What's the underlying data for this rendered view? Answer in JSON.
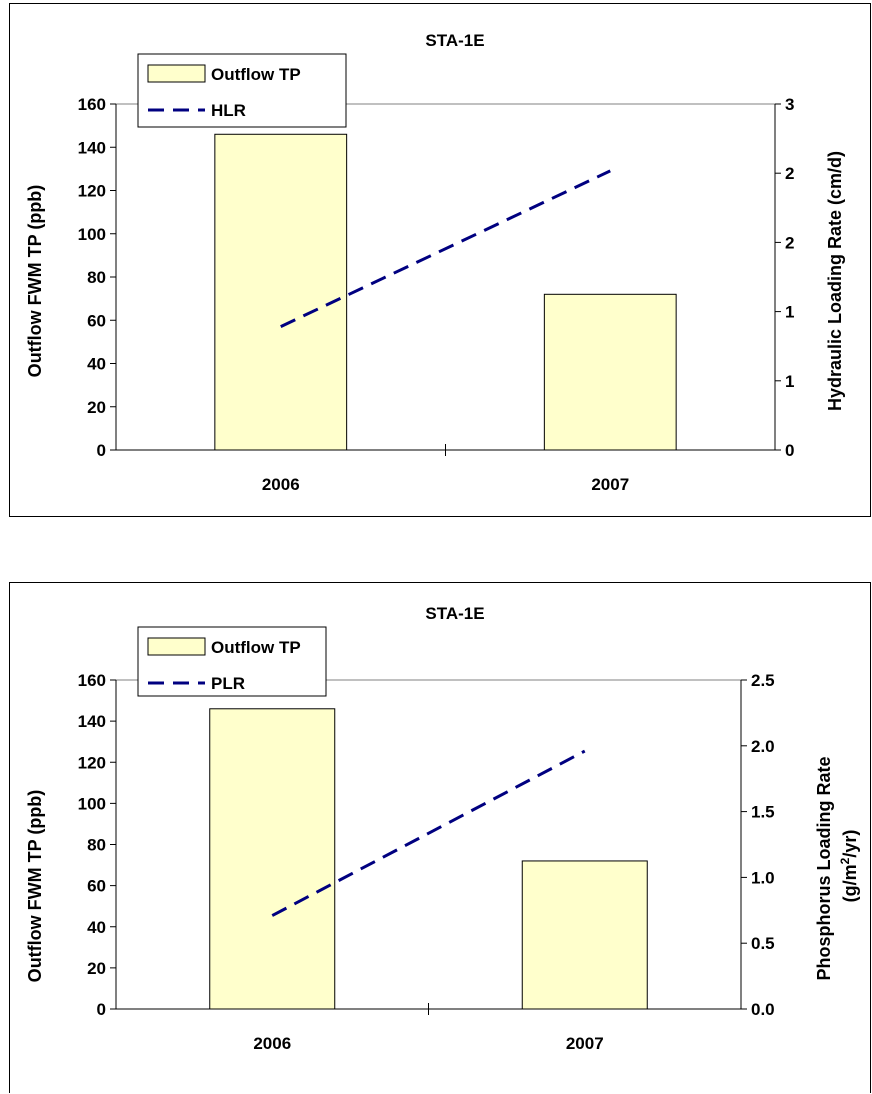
{
  "chart_data": [
    {
      "type": "bar",
      "title": "STA-1E",
      "categories": [
        "2006",
        "2007"
      ],
      "series": [
        {
          "name": "Outflow TP",
          "type": "bar",
          "axis": "left",
          "values": [
            146,
            72
          ],
          "color": "#FFFFCC"
        },
        {
          "name": "HLR",
          "type": "line",
          "axis": "right",
          "values": [
            1.07,
            2.42
          ],
          "color": "#000080",
          "style": "dashed"
        }
      ],
      "ylabel": "Outflow FWM TP (ppb)",
      "y2label": "Hydraulic Loading Rate (cm/d)",
      "ylim": [
        0,
        160
      ],
      "yticks": [
        "0",
        "20",
        "40",
        "60",
        "80",
        "100",
        "120",
        "140",
        "160"
      ],
      "y2lim": [
        0,
        3
      ],
      "y2ticks": [
        "0",
        "1",
        "1",
        "2",
        "2",
        "3"
      ],
      "legend": "top-left",
      "grid": false
    },
    {
      "type": "bar",
      "title": "STA-1E",
      "categories": [
        "2006",
        "2007"
      ],
      "series": [
        {
          "name": "Outflow TP",
          "type": "bar",
          "axis": "left",
          "values": [
            146,
            72
          ],
          "color": "#FFFFCC"
        },
        {
          "name": "PLR",
          "type": "line",
          "axis": "right",
          "values": [
            0.71,
            1.96
          ],
          "color": "#000080",
          "style": "dashed"
        }
      ],
      "ylabel": "Outflow FWM TP (ppb)",
      "y2label_lines": [
        "Phosphorus Loading Rate",
        "(g/m",
        "2",
        "/yr)"
      ],
      "ylim": [
        0,
        160
      ],
      "yticks": [
        "0",
        "20",
        "40",
        "60",
        "80",
        "100",
        "120",
        "140",
        "160"
      ],
      "y2lim": [
        0,
        2.5
      ],
      "y2ticks": [
        "0.0",
        "0.5",
        "1.0",
        "1.5",
        "2.0",
        "2.5"
      ],
      "legend": "top-left",
      "grid": false
    }
  ]
}
